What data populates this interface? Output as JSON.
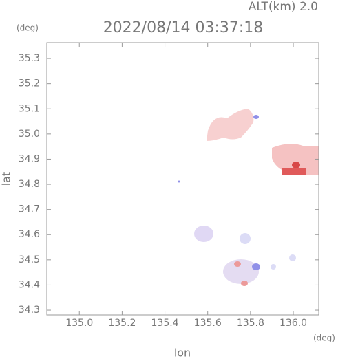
{
  "chart_data": {
    "type": "map",
    "title": "2022/08/14 03:37:18",
    "altitude_label": "ALT(km) 2.0",
    "y_unit": "(deg)",
    "x_unit": "(deg)",
    "xlabel": "lon",
    "ylabel": "lat",
    "xlim": [
      134.848,
      136.119
    ],
    "ylim": [
      34.281,
      35.363
    ],
    "xticks": [
      {
        "value": 135.0,
        "label": "135.0"
      },
      135.2,
      135.4,
      135.6,
      135.8,
      {
        "value": 136.0,
        "label": "136.0"
      }
    ],
    "yticks": [
      34.3,
      34.4,
      34.5,
      34.6,
      34.7,
      34.8,
      34.9,
      {
        "value": 35.0,
        "label": "35.0"
      },
      35.1,
      35.2,
      35.3
    ]
  }
}
